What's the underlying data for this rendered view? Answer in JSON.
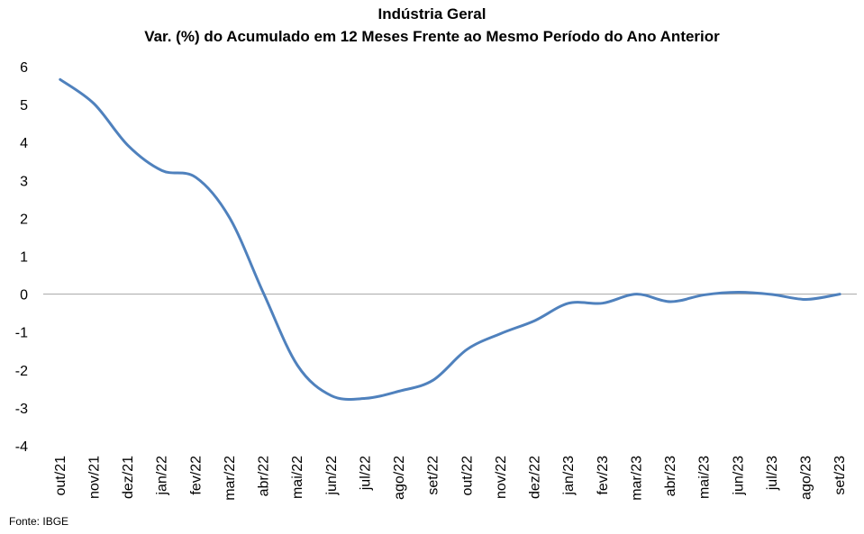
{
  "chart_data": {
    "type": "line",
    "title": "Indústria  Geral",
    "subtitle": "Var. (%) do Acumulado  em 12 Meses Frente ao Mesmo Período do Ano Anterior",
    "xlabel": "",
    "ylabel": "",
    "ylim": [
      -4,
      6
    ],
    "yticks": [
      "6",
      "5",
      "4",
      "3",
      "2",
      "1",
      "0",
      "-1",
      "-2",
      "-3",
      "-4"
    ],
    "grid": false,
    "legend": "none",
    "categories": [
      "out/21",
      "nov/21",
      "dez/21",
      "jan/22",
      "fev/22",
      "mar/22",
      "abr/22",
      "mai/22",
      "jun/22",
      "jul/22",
      "ago/22",
      "set/22",
      "out/22",
      "nov/22",
      "dez/22",
      "jan/23",
      "fev/23",
      "mar/23",
      "abr/23",
      "mai/23",
      "jun/23",
      "jul/23",
      "ago/23",
      "set/23"
    ],
    "series": [
      {
        "values": [
          5.66,
          5.02,
          3.92,
          3.26,
          3.08,
          2.01,
          0.02,
          -1.88,
          -2.68,
          -2.75,
          -2.56,
          -2.27,
          -1.46,
          -1.04,
          -0.7,
          -0.24,
          -0.24,
          0.0,
          -0.2,
          -0.02,
          0.05,
          -0.01,
          -0.14,
          0.0
        ],
        "color": "#4f81bd"
      }
    ],
    "zero_line_color": "#a6a6a6",
    "source_note": "Fonte: IBGE"
  }
}
